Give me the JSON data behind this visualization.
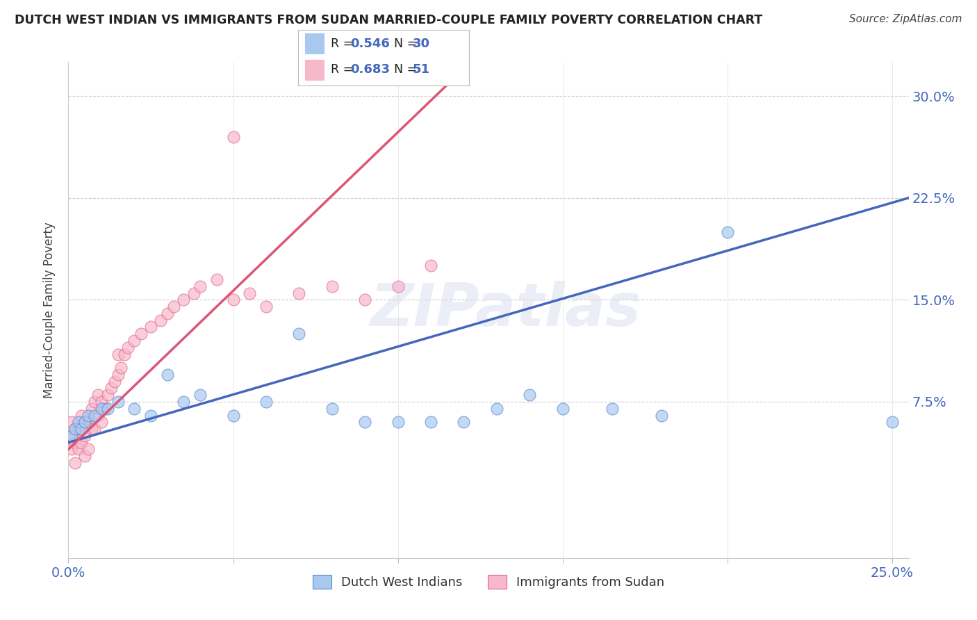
{
  "title": "DUTCH WEST INDIAN VS IMMIGRANTS FROM SUDAN MARRIED-COUPLE FAMILY POVERTY CORRELATION CHART",
  "source": "Source: ZipAtlas.com",
  "ylabel": "Married-Couple Family Poverty",
  "xlim": [
    0.0,
    0.255
  ],
  "ylim": [
    -0.04,
    0.325
  ],
  "xticks": [
    0.0,
    0.05,
    0.1,
    0.15,
    0.2,
    0.25
  ],
  "xticklabels": [
    "0.0%",
    "",
    "",
    "",
    "",
    "25.0%"
  ],
  "yticks": [
    0.075,
    0.15,
    0.225,
    0.3
  ],
  "yticklabels": [
    "7.5%",
    "15.0%",
    "22.5%",
    "30.0%"
  ],
  "blue_R": 0.546,
  "blue_N": 30,
  "pink_R": 0.683,
  "pink_N": 51,
  "blue_color": "#a8c8f0",
  "pink_color": "#f8b8cc",
  "blue_edge_color": "#5588cc",
  "pink_edge_color": "#dd6688",
  "blue_line_color": "#4466bb",
  "pink_line_color": "#dd5577",
  "legend_label_blue": "Dutch West Indians",
  "legend_label_pink": "Immigrants from Sudan",
  "watermark": "ZIPatlas",
  "blue_scatter_x": [
    0.001,
    0.002,
    0.003,
    0.004,
    0.005,
    0.006,
    0.008,
    0.01,
    0.012,
    0.015,
    0.02,
    0.025,
    0.03,
    0.035,
    0.04,
    0.05,
    0.06,
    0.07,
    0.08,
    0.09,
    0.1,
    0.11,
    0.12,
    0.13,
    0.14,
    0.15,
    0.165,
    0.18,
    0.2,
    0.25
  ],
  "blue_scatter_y": [
    0.05,
    0.055,
    0.06,
    0.055,
    0.06,
    0.065,
    0.065,
    0.07,
    0.07,
    0.075,
    0.07,
    0.065,
    0.095,
    0.075,
    0.08,
    0.065,
    0.075,
    0.125,
    0.07,
    0.06,
    0.06,
    0.06,
    0.06,
    0.07,
    0.08,
    0.07,
    0.07,
    0.065,
    0.2,
    0.06
  ],
  "pink_scatter_x": [
    0.001,
    0.001,
    0.001,
    0.002,
    0.002,
    0.002,
    0.003,
    0.003,
    0.004,
    0.004,
    0.005,
    0.005,
    0.005,
    0.006,
    0.006,
    0.007,
    0.007,
    0.008,
    0.008,
    0.009,
    0.009,
    0.01,
    0.01,
    0.011,
    0.012,
    0.013,
    0.014,
    0.015,
    0.015,
    0.016,
    0.017,
    0.018,
    0.02,
    0.022,
    0.025,
    0.028,
    0.03,
    0.032,
    0.035,
    0.038,
    0.04,
    0.045,
    0.05,
    0.055,
    0.06,
    0.07,
    0.08,
    0.09,
    0.1,
    0.11,
    0.05
  ],
  "pink_scatter_y": [
    0.04,
    0.05,
    0.06,
    0.03,
    0.045,
    0.055,
    0.04,
    0.055,
    0.045,
    0.065,
    0.035,
    0.05,
    0.06,
    0.04,
    0.06,
    0.055,
    0.07,
    0.055,
    0.075,
    0.065,
    0.08,
    0.06,
    0.075,
    0.07,
    0.08,
    0.085,
    0.09,
    0.095,
    0.11,
    0.1,
    0.11,
    0.115,
    0.12,
    0.125,
    0.13,
    0.135,
    0.14,
    0.145,
    0.15,
    0.155,
    0.16,
    0.165,
    0.15,
    0.155,
    0.145,
    0.155,
    0.16,
    0.15,
    0.16,
    0.175,
    0.27
  ],
  "blue_line_x0": 0.0,
  "blue_line_y0": 0.045,
  "blue_line_x1": 0.255,
  "blue_line_y1": 0.225,
  "pink_line_x0": 0.0,
  "pink_line_y0": 0.04,
  "pink_line_x1": 0.12,
  "pink_line_y1": 0.32
}
